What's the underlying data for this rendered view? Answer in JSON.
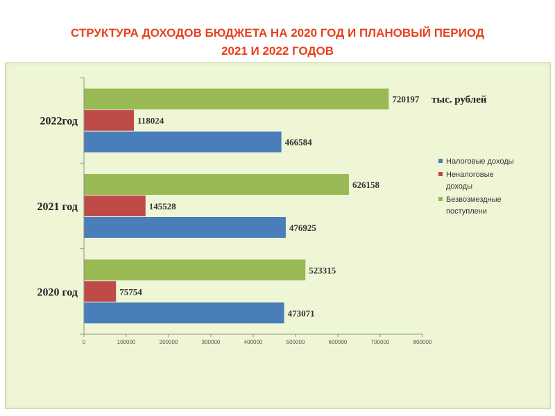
{
  "title_line1": "СТРУКТУРА ДОХОДОВ БЮДЖЕТА НА 2020 ГОД И ПЛАНОВЫЙ ПЕРИОД",
  "title_line2": "2021 И 2022 ГОДОВ",
  "unit": "тыс. рублей",
  "colors": {
    "title": "#e8401c",
    "background": "#eef6d6"
  },
  "chart_data": {
    "type": "bar",
    "orientation": "horizontal",
    "categories": [
      "2020 год",
      "2021 год",
      "2022год"
    ],
    "series": [
      {
        "name": "Налоговые доходы",
        "color": "#4a7ebb",
        "values": [
          473071,
          476925,
          466584
        ]
      },
      {
        "name": "Неналоговые доходы",
        "color": "#be4b48",
        "values": [
          75754,
          145528,
          118024
        ]
      },
      {
        "name": "Безвозмездные поступлени",
        "color": "#98b954",
        "values": [
          523315,
          626158,
          720197
        ]
      }
    ],
    "xlim": [
      0,
      800000
    ],
    "xticks": [
      0,
      100000,
      200000,
      300000,
      400000,
      500000,
      600000,
      700000,
      800000
    ],
    "legend_position": "right",
    "grid": false
  }
}
